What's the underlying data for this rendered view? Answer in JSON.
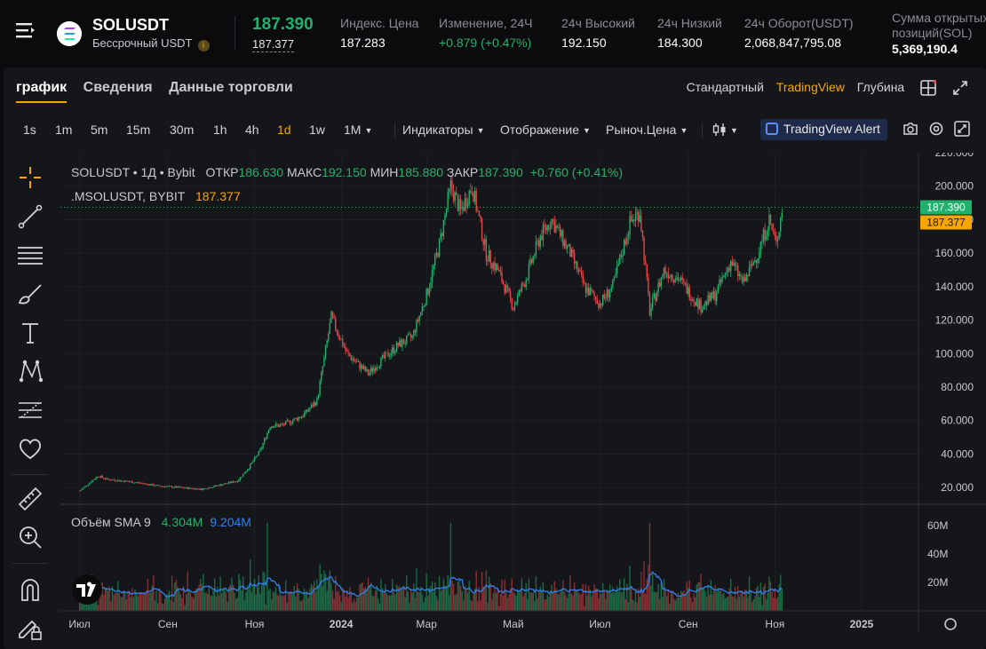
{
  "ticker": {
    "symbol": "SOLUSDT",
    "subtitle": "Бессрочный USDT",
    "info_glyph": "i",
    "last_price": "187.390",
    "mark_price": "187.377",
    "stats": [
      {
        "label": "Индекс. Цена",
        "value": "187.283",
        "color": "white"
      },
      {
        "label": "Изменение, 24Ч",
        "value": "+0.879 (+0.47%)",
        "color": "green"
      },
      {
        "label": "24ч Высокий",
        "value": "192.150",
        "color": "white"
      },
      {
        "label": "24ч Низкий",
        "value": "184.300",
        "color": "white"
      },
      {
        "label": "24ч Оборот(USDT)",
        "value": "2,068,847,795.08",
        "color": "white"
      }
    ],
    "open_interest": {
      "label_line1": "Сумма открытых",
      "label_line2": "позиций(SOL)",
      "value": "5,369,190.4"
    }
  },
  "tabs": [
    "график",
    "Сведения",
    "Данные торговли"
  ],
  "active_tab": 0,
  "views": [
    "Стандартный",
    "TradingView",
    "Глубина"
  ],
  "active_view": 1,
  "intervals": [
    "1s",
    "1m",
    "5m",
    "15m",
    "30m",
    "1h",
    "4h",
    "1d",
    "1w",
    "1M"
  ],
  "active_interval": "1d",
  "toolbar": {
    "indicators": "Индикаторы",
    "display": "Отображение",
    "price_type": "Рыноч.Цена",
    "alert": "TradingView Alert"
  },
  "tool_icons": [
    "crosshair-icon",
    "trend-line-icon",
    "horizontal-lines-icon",
    "brush-icon",
    "text-icon",
    "pattern-icon",
    "fib-icon",
    "heart-icon",
    "ruler-icon",
    "zoom-in-icon",
    "magnet-icon",
    "lock-pencil-icon"
  ],
  "legend": {
    "symbol_line": "SOLUSDT • 1Д • Bybit",
    "open_label": "ОТКР",
    "open": "186.630",
    "high_label": "МАКС",
    "high": "192.150",
    "low_label": "МИН",
    "low": "185.880",
    "close_label": "ЗАКР",
    "close": "187.390",
    "change": "+0.760 (+0.41%)",
    "mark_line_label": ".MSOLUSDT, BYBIT",
    "mark_line_value": "187.377",
    "volume_label": "Объём SMA 9",
    "volume_value": "4.304M",
    "volume_sma": "9.204M"
  },
  "colors": {
    "up": "#20b26c",
    "down": "#ef454a",
    "accent": "#f7a600",
    "sma": "#2f80ed",
    "bg": "#15161a"
  },
  "chart_data": {
    "type": "candlestick",
    "y_ticks": [
      "220.000",
      "200.000",
      "180.000",
      "160.000",
      "140.000",
      "120.000",
      "100.000",
      "80.000",
      "60.000",
      "40.000",
      "20.000"
    ],
    "y_range": [
      10,
      220
    ],
    "x_ticks": [
      "Июл",
      "Сен",
      "Ноя",
      "2024",
      "Мар",
      "Май",
      "Июл",
      "Сен",
      "Ноя",
      "2025"
    ],
    "price_labels": [
      {
        "value": "187.390",
        "color": "#20b26c"
      },
      {
        "value": "187.377",
        "color": "#f7a600"
      }
    ],
    "volume_ticks": [
      "60M",
      "40M",
      "20M"
    ],
    "volume_range": [
      0,
      70
    ],
    "close_path": [
      [
        "2023-07-01",
        18
      ],
      [
        "2023-07-14",
        27
      ],
      [
        "2023-07-20",
        25
      ],
      [
        "2023-08-10",
        23
      ],
      [
        "2023-08-25",
        21
      ],
      [
        "2023-09-10",
        20
      ],
      [
        "2023-09-25",
        19
      ],
      [
        "2023-10-10",
        22
      ],
      [
        "2023-10-20",
        24
      ],
      [
        "2023-10-28",
        32
      ],
      [
        "2023-11-05",
        42
      ],
      [
        "2023-11-12",
        57
      ],
      [
        "2023-11-20",
        57
      ],
      [
        "2023-12-05",
        63
      ],
      [
        "2023-12-15",
        72
      ],
      [
        "2023-12-25",
        122
      ],
      [
        "2024-01-05",
        100
      ],
      [
        "2024-01-20",
        88
      ],
      [
        "2024-01-28",
        95
      ],
      [
        "2024-02-10",
        105
      ],
      [
        "2024-02-20",
        110
      ],
      [
        "2024-03-01",
        135
      ],
      [
        "2024-03-10",
        165
      ],
      [
        "2024-03-18",
        200
      ],
      [
        "2024-03-25",
        185
      ],
      [
        "2024-04-02",
        200
      ],
      [
        "2024-04-12",
        160
      ],
      [
        "2024-04-20",
        150
      ],
      [
        "2024-05-01",
        128
      ],
      [
        "2024-05-10",
        145
      ],
      [
        "2024-05-20",
        170
      ],
      [
        "2024-05-28",
        180
      ],
      [
        "2024-06-10",
        160
      ],
      [
        "2024-06-20",
        140
      ],
      [
        "2024-07-01",
        130
      ],
      [
        "2024-07-10",
        140
      ],
      [
        "2024-07-22",
        178
      ],
      [
        "2024-07-29",
        185
      ],
      [
        "2024-08-05",
        125
      ],
      [
        "2024-08-15",
        150
      ],
      [
        "2024-08-25",
        145
      ],
      [
        "2024-09-05",
        133
      ],
      [
        "2024-09-10",
        128
      ],
      [
        "2024-09-20",
        135
      ],
      [
        "2024-10-01",
        155
      ],
      [
        "2024-10-10",
        142
      ],
      [
        "2024-10-20",
        160
      ],
      [
        "2024-10-28",
        180
      ],
      [
        "2024-11-02",
        165
      ],
      [
        "2024-11-06",
        187
      ]
    ]
  }
}
